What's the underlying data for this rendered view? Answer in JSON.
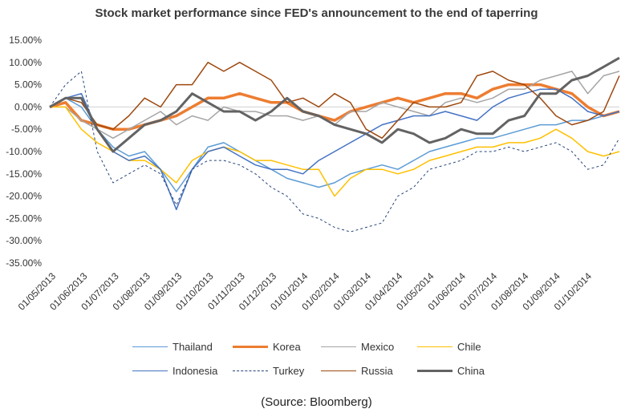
{
  "chart_data": {
    "type": "line",
    "title": "Stock market performance since FED's announcement to the end of taperring",
    "source_note": "(Source: Bloomberg)",
    "ylim": [
      -35,
      15
    ],
    "y_ticks": [
      "15.00%",
      "10.00%",
      "5.00%",
      "0.00%",
      "-5.00%",
      "-10.00%",
      "-15.00%",
      "-20.00%",
      "-25.00%",
      "-30.00%",
      "-35.00%"
    ],
    "x_ticks": [
      "01/05/2013",
      "01/06/2013",
      "01/07/2013",
      "01/08/2013",
      "01/09/2013",
      "01/10/2013",
      "01/11/2013",
      "01/12/2013",
      "01/01/2014",
      "01/02/2014",
      "01/03/2014",
      "01/04/2014",
      "01/05/2014",
      "01/06/2014",
      "01/07/2014",
      "01/08/2014",
      "01/09/2014",
      "01/10/2014"
    ],
    "x": [
      "01/05/2013",
      "15/05/2013",
      "01/06/2013",
      "15/06/2013",
      "01/07/2013",
      "15/07/2013",
      "01/08/2013",
      "15/08/2013",
      "01/09/2013",
      "15/09/2013",
      "01/10/2013",
      "15/10/2013",
      "01/11/2013",
      "15/11/2013",
      "01/12/2013",
      "15/12/2013",
      "01/01/2014",
      "15/01/2014",
      "01/02/2014",
      "15/02/2014",
      "01/03/2014",
      "15/03/2014",
      "01/04/2014",
      "15/04/2014",
      "01/05/2014",
      "15/05/2014",
      "01/06/2014",
      "15/06/2014",
      "01/07/2014",
      "15/07/2014",
      "01/08/2014",
      "15/08/2014",
      "01/09/2014",
      "15/09/2014",
      "01/10/2014",
      "15/10/2014",
      "31/10/2014"
    ],
    "legend_position": "bottom",
    "grid": false,
    "series": [
      {
        "name": "Thailand",
        "color": "#5b9bd5",
        "width": 1.5,
        "dash": "",
        "values": [
          0,
          2,
          0,
          -5,
          -9,
          -11,
          -10,
          -14,
          -19,
          -14,
          -9,
          -8,
          -10,
          -12,
          -14,
          -16,
          -17,
          -18,
          -17,
          -15,
          -14,
          -13,
          -14,
          -12,
          -10,
          -9,
          -8,
          -7,
          -7,
          -6,
          -5,
          -4,
          -4,
          -3,
          -3,
          -2,
          -1
        ]
      },
      {
        "name": "Korea",
        "color": "#ed7d31",
        "width": 3.5,
        "dash": "",
        "values": [
          0,
          1,
          -3,
          -4,
          -5,
          -5,
          -4,
          -3,
          -2,
          0,
          2,
          2,
          3,
          2,
          1,
          1,
          -1,
          -2,
          -3,
          -1,
          0,
          1,
          2,
          1,
          2,
          3,
          3,
          2,
          4,
          5,
          5,
          5,
          4,
          3,
          0,
          -2,
          -1
        ]
      },
      {
        "name": "Mexico",
        "color": "#a5a5a5",
        "width": 1.5,
        "dash": "",
        "values": [
          0,
          0,
          -3,
          -5,
          -7,
          -5,
          -3,
          -1,
          -4,
          -2,
          -3,
          0,
          -1,
          -1,
          -2,
          -2,
          -3,
          -2,
          -4,
          -1,
          -1,
          1,
          0,
          -1,
          -2,
          1,
          2,
          1,
          2,
          4,
          4,
          6,
          7,
          8,
          3,
          7,
          8
        ]
      },
      {
        "name": "Chile",
        "color": "#ffc000",
        "width": 1.5,
        "dash": "",
        "values": [
          0,
          0,
          -5,
          -8,
          -10,
          -12,
          -12,
          -14,
          -17,
          -12,
          -10,
          -9,
          -10,
          -12,
          -12,
          -13,
          -14,
          -14,
          -20,
          -16,
          -14,
          -14,
          -15,
          -14,
          -12,
          -11,
          -10,
          -9,
          -9,
          -8,
          -8,
          -7,
          -5,
          -7,
          -10,
          -11,
          -10
        ]
      },
      {
        "name": "Indonesia",
        "color": "#4472c4",
        "width": 1.5,
        "dash": "",
        "values": [
          0,
          2,
          3,
          -5,
          -10,
          -12,
          -11,
          -14,
          -23,
          -14,
          -10,
          -9,
          -11,
          -13,
          -14,
          -14,
          -15,
          -12,
          -10,
          -8,
          -6,
          -4,
          -3,
          -2,
          -2,
          -1,
          -2,
          -3,
          0,
          2,
          3,
          4,
          4,
          2,
          -1,
          -2,
          -1
        ]
      },
      {
        "name": "Turkey",
        "color": "#264478",
        "width": 1,
        "dash": "3,3",
        "values": [
          0,
          5,
          8,
          -10,
          -17,
          -15,
          -13,
          -15,
          -22,
          -14,
          -12,
          -12,
          -13,
          -15,
          -18,
          -20,
          -24,
          -25,
          -27,
          -28,
          -27,
          -26,
          -20,
          -18,
          -14,
          -13,
          -12,
          -10,
          -10,
          -9,
          -10,
          -9,
          -8,
          -10,
          -14,
          -13,
          -7
        ]
      },
      {
        "name": "Russia",
        "color": "#9e480e",
        "width": 1.5,
        "dash": "",
        "values": [
          0,
          2,
          1,
          -4,
          -5,
          -2,
          2,
          0,
          5,
          5,
          10,
          8,
          10,
          8,
          6,
          1,
          2,
          0,
          3,
          1,
          -5,
          -7,
          -3,
          1,
          0,
          0,
          1,
          7,
          8,
          6,
          5,
          2,
          -2,
          -4,
          -3,
          -1,
          7
        ]
      },
      {
        "name": "China",
        "color": "#636363",
        "width": 3,
        "dash": "",
        "values": [
          0,
          2,
          2,
          -5,
          -10,
          -7,
          -4,
          -3,
          -1,
          3,
          1,
          -1,
          -1,
          -3,
          -1,
          2,
          -1,
          -2,
          -4,
          -5,
          -6,
          -8,
          -5,
          -6,
          -8,
          -7,
          -5,
          -6,
          -6,
          -3,
          -2,
          3,
          3,
          6,
          7,
          9,
          11
        ]
      }
    ]
  }
}
